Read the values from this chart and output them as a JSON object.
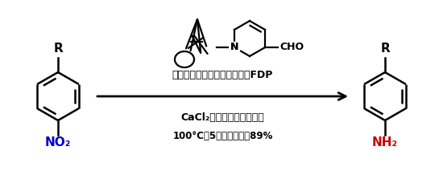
{
  "bg_color": "#ffffff",
  "arrow_text1": "体内で生産された尿や血中のFDP",
  "arrow_text2": "CaCl₂（塩化カルシウム）",
  "arrow_text3": "100°C、5時間、最大で89%",
  "left_R": "R",
  "left_NO2": "NO₂",
  "right_R": "R",
  "right_NH2": "NH₂",
  "left_R_color": "#000000",
  "left_NO2_color": "#0000cc",
  "right_R_color": "#000000",
  "right_NH2_color": "#cc0000",
  "text_color": "#000000",
  "piperidine_N": "N",
  "piperidine_CHO": "CHO"
}
